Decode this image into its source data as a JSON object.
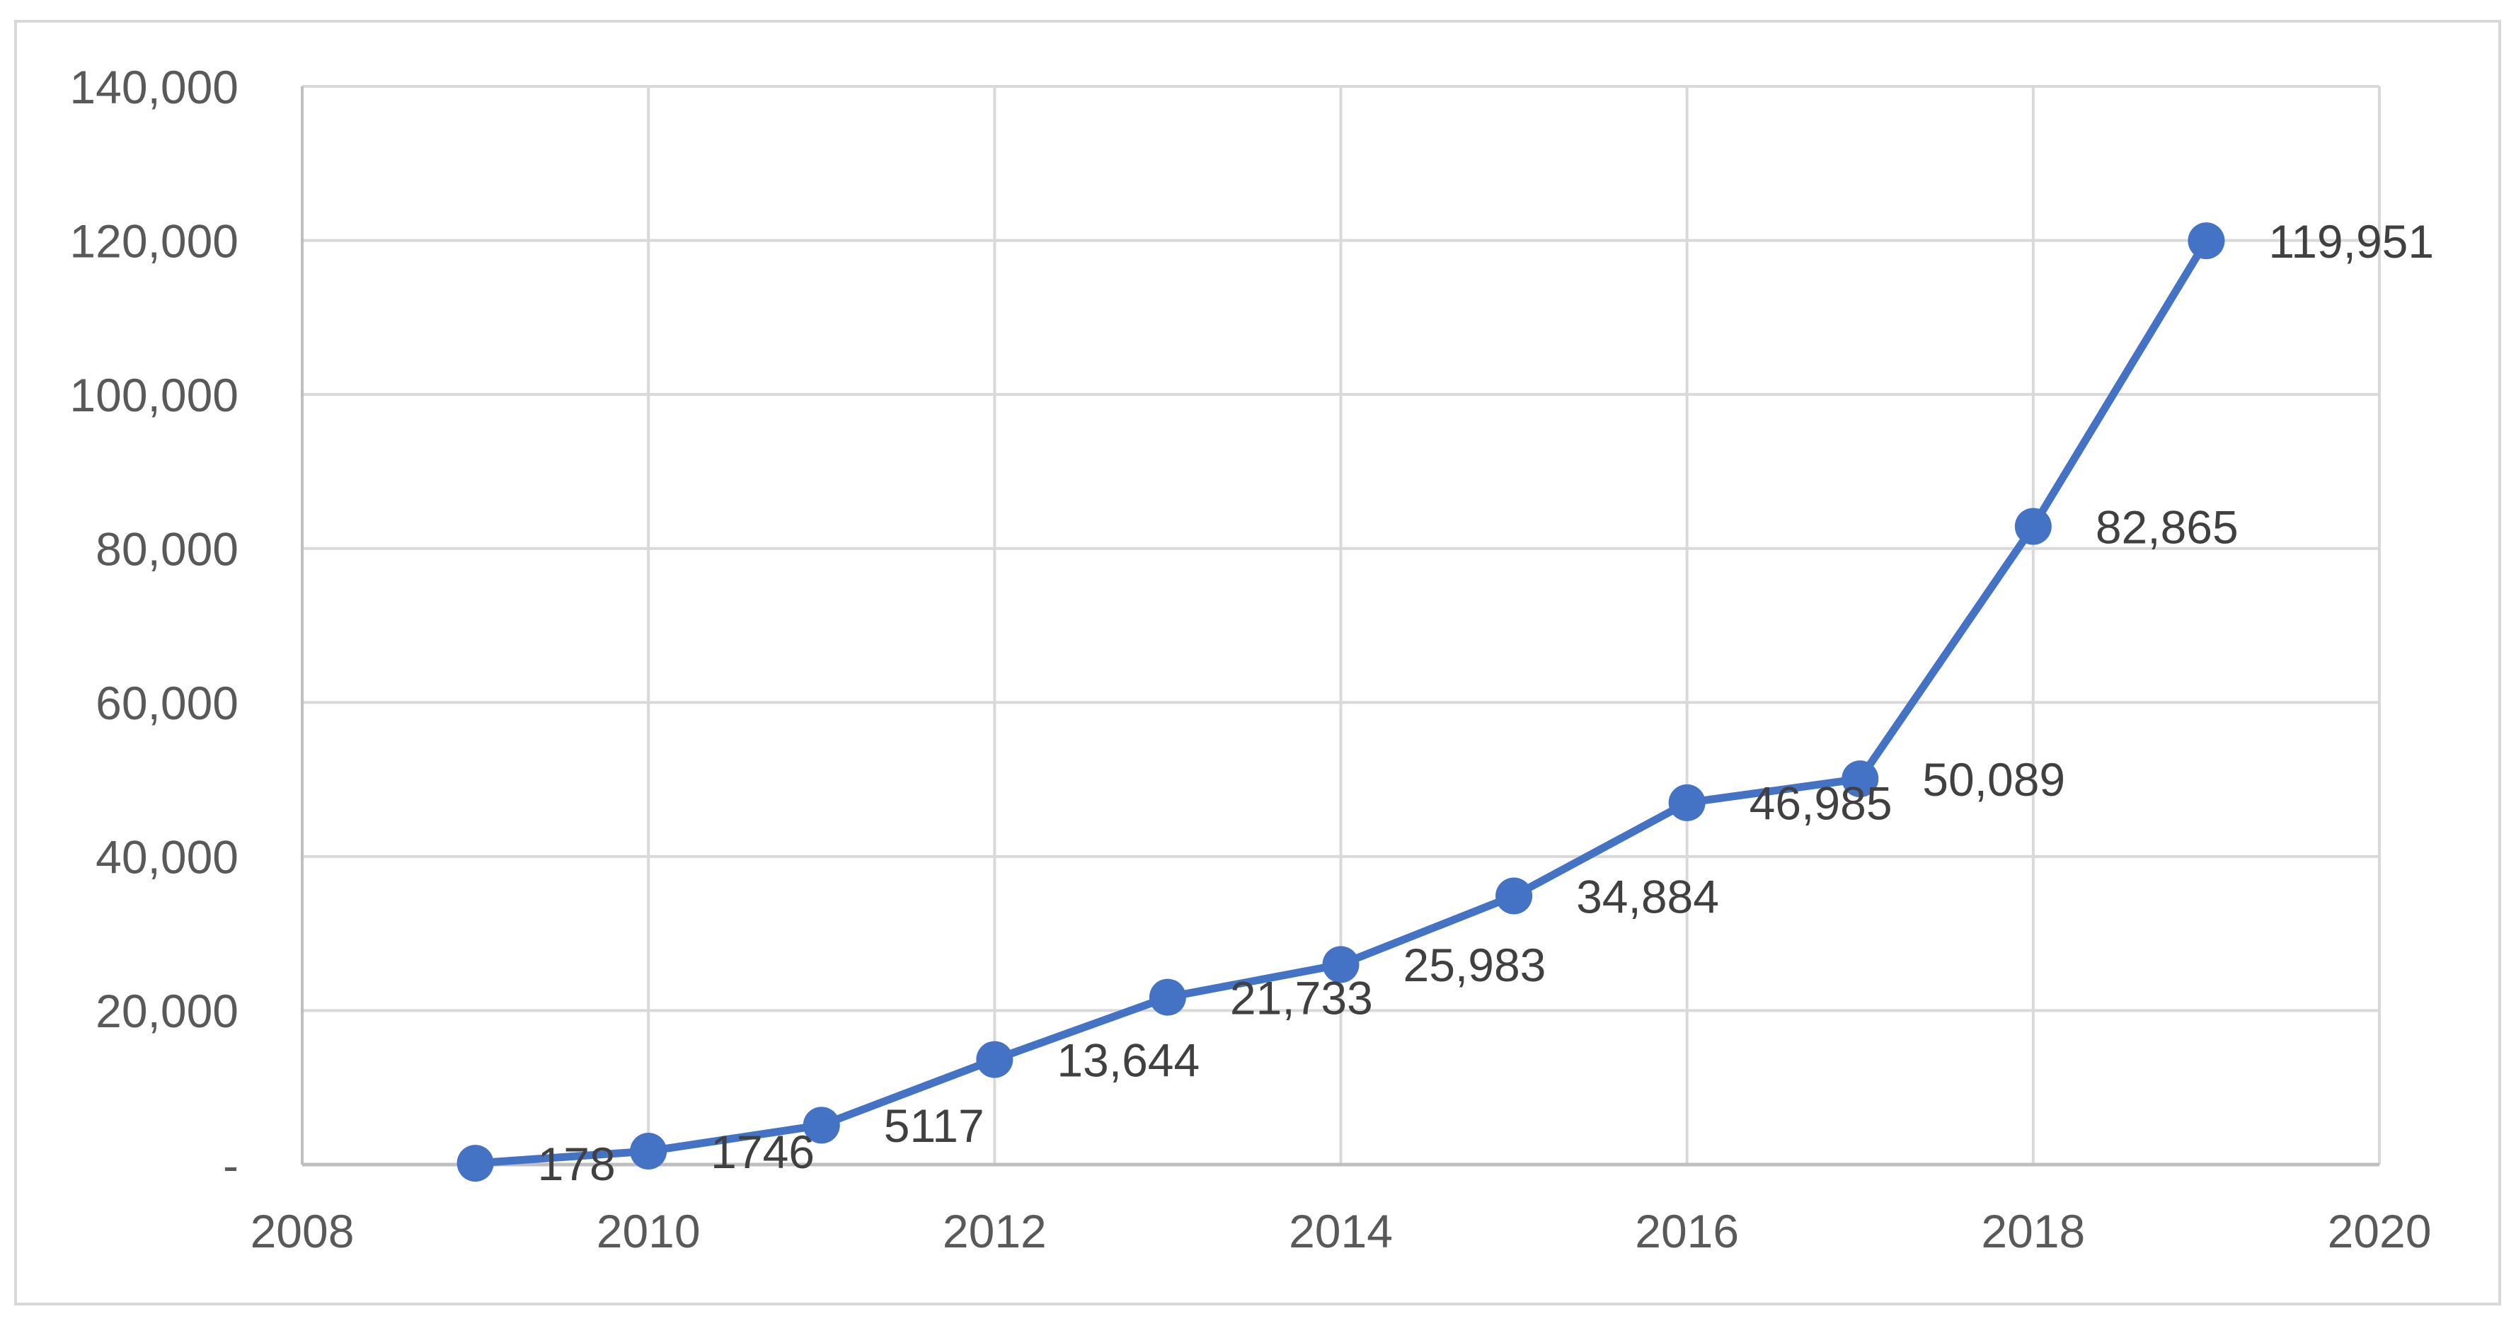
{
  "figure": {
    "background": "#FFFFFF",
    "border_color": "#D9D9D9"
  },
  "chart_data": {
    "type": "line",
    "x": [
      2009,
      2010,
      2011,
      2012,
      2013,
      2014,
      2015,
      2016,
      2017,
      2018,
      2019
    ],
    "series": [
      {
        "values": [
          178,
          1746,
          5117,
          13644,
          21733,
          25983,
          34884,
          46985,
          50089,
          82865,
          119951
        ]
      }
    ],
    "data_labels": [
      "178",
      "1746",
      "5117",
      "13,644",
      "21,733",
      "25,983",
      "34,884",
      "46,985",
      "50,089",
      "82,865",
      "119,951"
    ],
    "x_ticks": [
      {
        "value": 2008,
        "label": "2008"
      },
      {
        "value": 2010,
        "label": "2010"
      },
      {
        "value": 2012,
        "label": "2012"
      },
      {
        "value": 2014,
        "label": "2014"
      },
      {
        "value": 2016,
        "label": "2016"
      },
      {
        "value": 2018,
        "label": "2018"
      },
      {
        "value": 2020,
        "label": "2020"
      }
    ],
    "y_ticks": [
      {
        "value": 0,
        "label": "-"
      },
      {
        "value": 20000,
        "label": "20,000"
      },
      {
        "value": 40000,
        "label": "40,000"
      },
      {
        "value": 60000,
        "label": "60,000"
      },
      {
        "value": 80000,
        "label": "80,000"
      },
      {
        "value": 100000,
        "label": "100,000"
      },
      {
        "value": 120000,
        "label": "120,000"
      },
      {
        "value": 140000,
        "label": "140,000"
      }
    ],
    "xlim": [
      2008,
      2020
    ],
    "ylim": [
      0,
      140000
    ],
    "grid": true,
    "legend": "none",
    "colors": {
      "series": "#4472C4",
      "gridline": "#D9D9D9",
      "axis_line": "#BFBFBF",
      "tick_label": "#595959",
      "data_label": "#404040"
    }
  }
}
